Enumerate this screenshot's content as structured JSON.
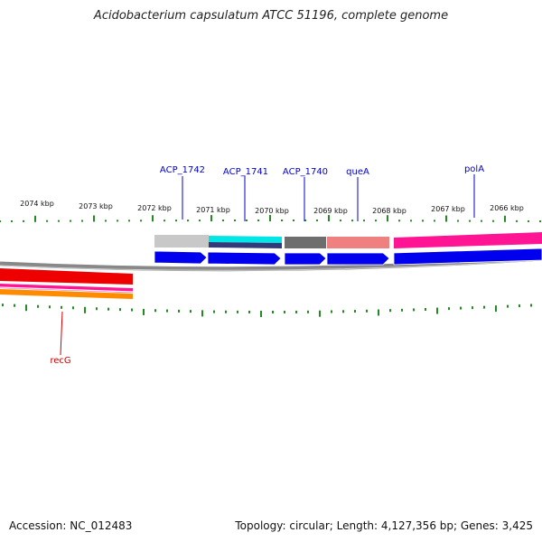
{
  "title": "Acidobacterium capsulatum ATCC 51196, complete genome",
  "footer": {
    "accession": "Accession: NC_012483",
    "summary": "Topology: circular; Length: 4,127,356 bp; Genes: 3,425"
  },
  "top_scale": {
    "labels": [
      "2074 kbp",
      "2073 kbp",
      "2072 kbp",
      "2071 kbp",
      "2070 kbp",
      "2069 kbp",
      "2068 kbp",
      "2067 kbp",
      "2066 kbp"
    ]
  },
  "gene_labels": [
    {
      "name": "ACP_1742",
      "color": "#0000cc"
    },
    {
      "name": "ACP_1741",
      "color": "#0000cc"
    },
    {
      "name": "ACP_1740",
      "color": "#0000cc"
    },
    {
      "name": "queA",
      "color": "#0000cc"
    },
    {
      "name": "polA",
      "color": "#0000cc"
    },
    {
      "name": "recG",
      "color": "#cc0000"
    }
  ],
  "colors": {
    "backbone": "#888888",
    "cds": "#0000ee",
    "tick": "#228b22",
    "acp1742_gene": "#c8c8c8",
    "acp1741_gene": "#00e5e5",
    "acp1741_sub": "#333a7a",
    "acp1740_gene": "#6e6e6e",
    "quea_gene": "#f08080",
    "pola_gene": "#ff1493",
    "recg_gene": "#ee0000",
    "recg_stripe_pink": "#ff1493",
    "recg_stripe_orange": "#ff8c00"
  }
}
